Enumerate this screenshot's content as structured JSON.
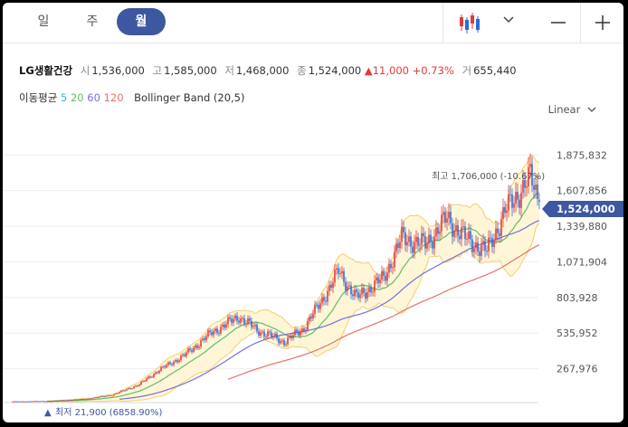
{
  "tabs": [
    {
      "label": "일"
    },
    {
      "label": "주"
    },
    {
      "label": "월",
      "active": true
    }
  ],
  "toolbar": {
    "chart_type_icon": "candlestick-icon",
    "dropdown_icon": "chevron-down-icon",
    "zoom_out_icon": "minus-icon",
    "zoom_in_icon": "plus-icon"
  },
  "quote": {
    "name": "LG생활건강",
    "open_label": "시",
    "open": "1,536,000",
    "high_label": "고",
    "high": "1,585,000",
    "low_label": "저",
    "low": "1,468,000",
    "close_label": "종",
    "close": "1,524,000",
    "change": "11,000",
    "change_pct": "+0.73%",
    "volume_label": "거",
    "volume": "655,440"
  },
  "indicators": {
    "ma_label": "이동평균",
    "ma_periods": [
      "5",
      "20",
      "60",
      "120"
    ],
    "bollinger": "Bollinger Band (20,5)"
  },
  "scale_mode": "Linear",
  "price_tag": "1,524,000",
  "annotations": {
    "high": "최고 1,706,000 (-10.67%)",
    "low": "최저 21,900 (6858.90%)"
  },
  "colors": {
    "up": "#e23a3a",
    "down": "#2e6ad6",
    "accent": "#3d57a0",
    "ma5": "#3cb8d8",
    "ma20": "#5fbf6a",
    "ma60": "#7b6ed8",
    "ma120": "#e8726a",
    "band_fill": "#fff6d8",
    "band_line": "#f3cf6a"
  },
  "chart_data": {
    "type": "candlestick",
    "y_ticks": [
      "267,976",
      "535,952",
      "803,928",
      "1,071,904",
      "1,339,880",
      "1,607,856",
      "1,875,832"
    ],
    "y_tick_values": [
      267976,
      535952,
      803928,
      1071904,
      1339880,
      1607856,
      1875832
    ],
    "ylim": [
      0,
      2000000
    ],
    "waypoints": [
      [
        0,
        21900
      ],
      [
        20,
        25000
      ],
      [
        40,
        40000
      ],
      [
        55,
        70000
      ],
      [
        70,
        150000
      ],
      [
        80,
        250000
      ],
      [
        95,
        370000
      ],
      [
        110,
        540000
      ],
      [
        125,
        660000
      ],
      [
        135,
        560000
      ],
      [
        150,
        470000
      ],
      [
        160,
        560000
      ],
      [
        170,
        760000
      ],
      [
        180,
        1000000
      ],
      [
        190,
        800000
      ],
      [
        205,
        950000
      ],
      [
        215,
        1250000
      ],
      [
        228,
        1200000
      ],
      [
        240,
        1400000
      ],
      [
        250,
        1250000
      ],
      [
        262,
        1150000
      ],
      [
        272,
        1450000
      ],
      [
        286,
        1706000
      ],
      [
        291,
        1524000
      ]
    ],
    "last": {
      "open": 1536000,
      "high": 1585000,
      "low": 1468000,
      "close": 1524000
    },
    "all_time_high": 1706000,
    "all_time_low": 21900
  }
}
